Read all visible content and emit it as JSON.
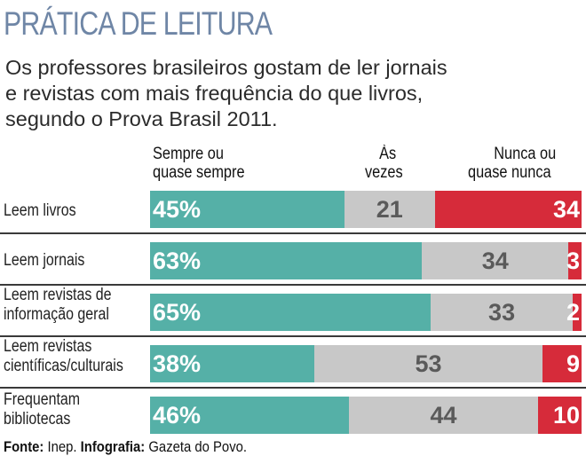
{
  "title": "PRÁTICA DE LEITURA",
  "subtitle_lines": [
    "Os professores brasileiros gostam de ler jornais",
    "e revistas com mais frequência do que livros,",
    "segundo o Prova Brasil 2011."
  ],
  "chart_data": {
    "type": "bar",
    "stacked": true,
    "orientation": "horizontal",
    "unit": "%",
    "title": "PRÁTICA DE LEITURA",
    "categories": [
      [
        "Leem livros"
      ],
      [
        "Leem jornais"
      ],
      [
        "Leem revistas de",
        "informação geral"
      ],
      [
        "Leem revistas",
        "científicas/culturais"
      ],
      [
        "Frequentam",
        "bibliotecas"
      ]
    ],
    "series": [
      {
        "name": [
          "Sempre ou",
          "quase sempre"
        ],
        "color": "#55b0a7",
        "text_color": "#ffffff",
        "labels": [
          "45%",
          "63%",
          "65%",
          "38%",
          "46%"
        ],
        "values": [
          45,
          63,
          65,
          38,
          46
        ]
      },
      {
        "name": [
          "Às",
          "vezes"
        ],
        "color": "#c8c8c8",
        "text_color": "#5a5a5a",
        "labels": [
          "21",
          "34",
          "33",
          "53",
          "44"
        ],
        "values": [
          21,
          34,
          33,
          53,
          44
        ]
      },
      {
        "name": [
          "Nunca ou",
          "quase nunca"
        ],
        "color": "#d62b3a",
        "text_color": "#ffffff",
        "labels": [
          "34",
          "3",
          "2",
          "9",
          "10"
        ],
        "values": [
          34,
          3,
          2,
          9,
          10
        ]
      }
    ]
  },
  "source": {
    "label1": "Fonte:",
    "text1": " Inep. ",
    "label2": "Infografia:",
    "text2": " Gazeta do Povo."
  }
}
